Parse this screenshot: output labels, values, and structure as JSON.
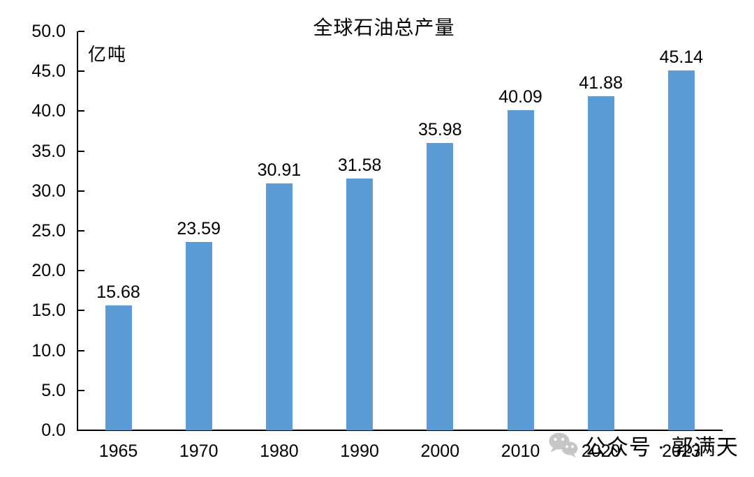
{
  "chart_data": {
    "type": "bar",
    "title": "全球石油总产量",
    "unit_label": "亿吨",
    "categories": [
      "1965",
      "1970",
      "1980",
      "1990",
      "2000",
      "2010",
      "2020",
      "2023"
    ],
    "values": [
      15.68,
      23.59,
      30.91,
      31.58,
      35.98,
      40.09,
      41.88,
      45.14
    ],
    "value_labels": [
      "15.68",
      "23.59",
      "30.91",
      "31.58",
      "35.98",
      "40.09",
      "41.88",
      "45.14"
    ],
    "ylim": [
      0,
      50
    ],
    "ytick_step": 5,
    "ytick_labels": [
      "0.0",
      "5.0",
      "10.0",
      "15.0",
      "20.0",
      "25.0",
      "30.0",
      "35.0",
      "40.0",
      "45.0",
      "50.0"
    ],
    "grid": false,
    "legend": "none",
    "bar_color": "#5B9BD5",
    "axis_color": "#000000"
  },
  "watermark": {
    "icon": "wechat-icon",
    "text": "公众号 · 郭满天",
    "color": "#C6C6C6"
  }
}
